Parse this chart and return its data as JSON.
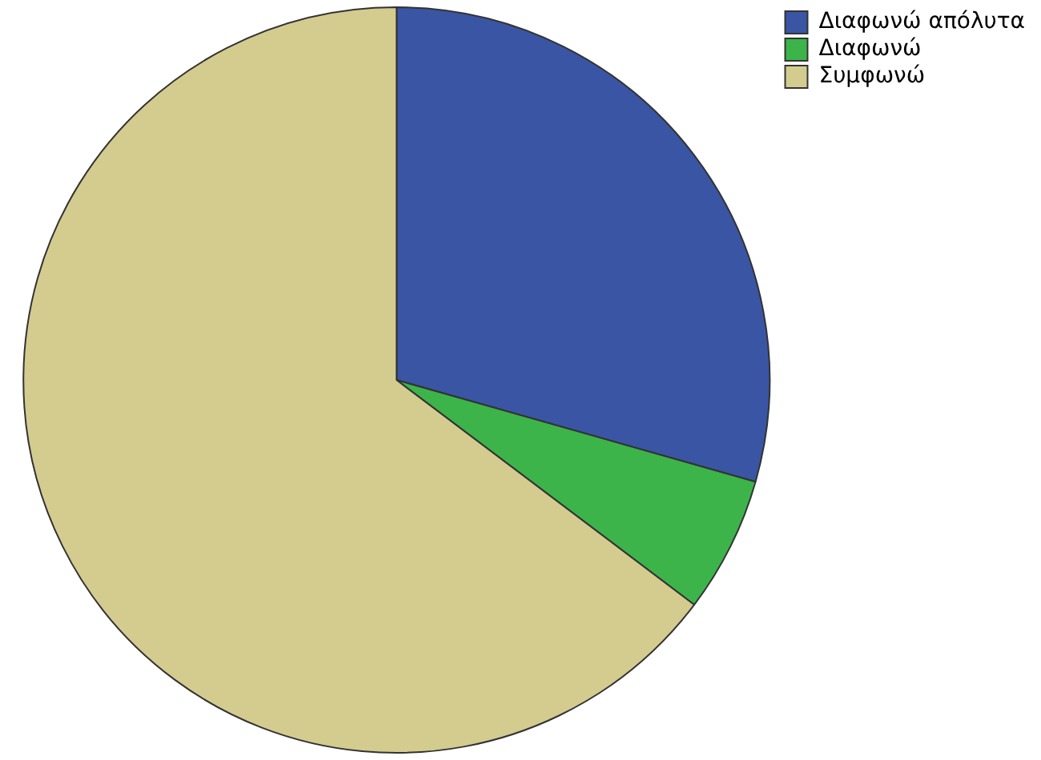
{
  "chart_data": {
    "type": "pie",
    "categories": [
      "Διαφωνώ απόλυτα",
      "Διαφωνώ",
      "Συμφωνώ"
    ],
    "values": [
      29.4,
      5.9,
      64.7
    ],
    "colors": [
      "#3a55a4",
      "#3cb44a",
      "#d4cc8f"
    ],
    "legend": "top right"
  }
}
